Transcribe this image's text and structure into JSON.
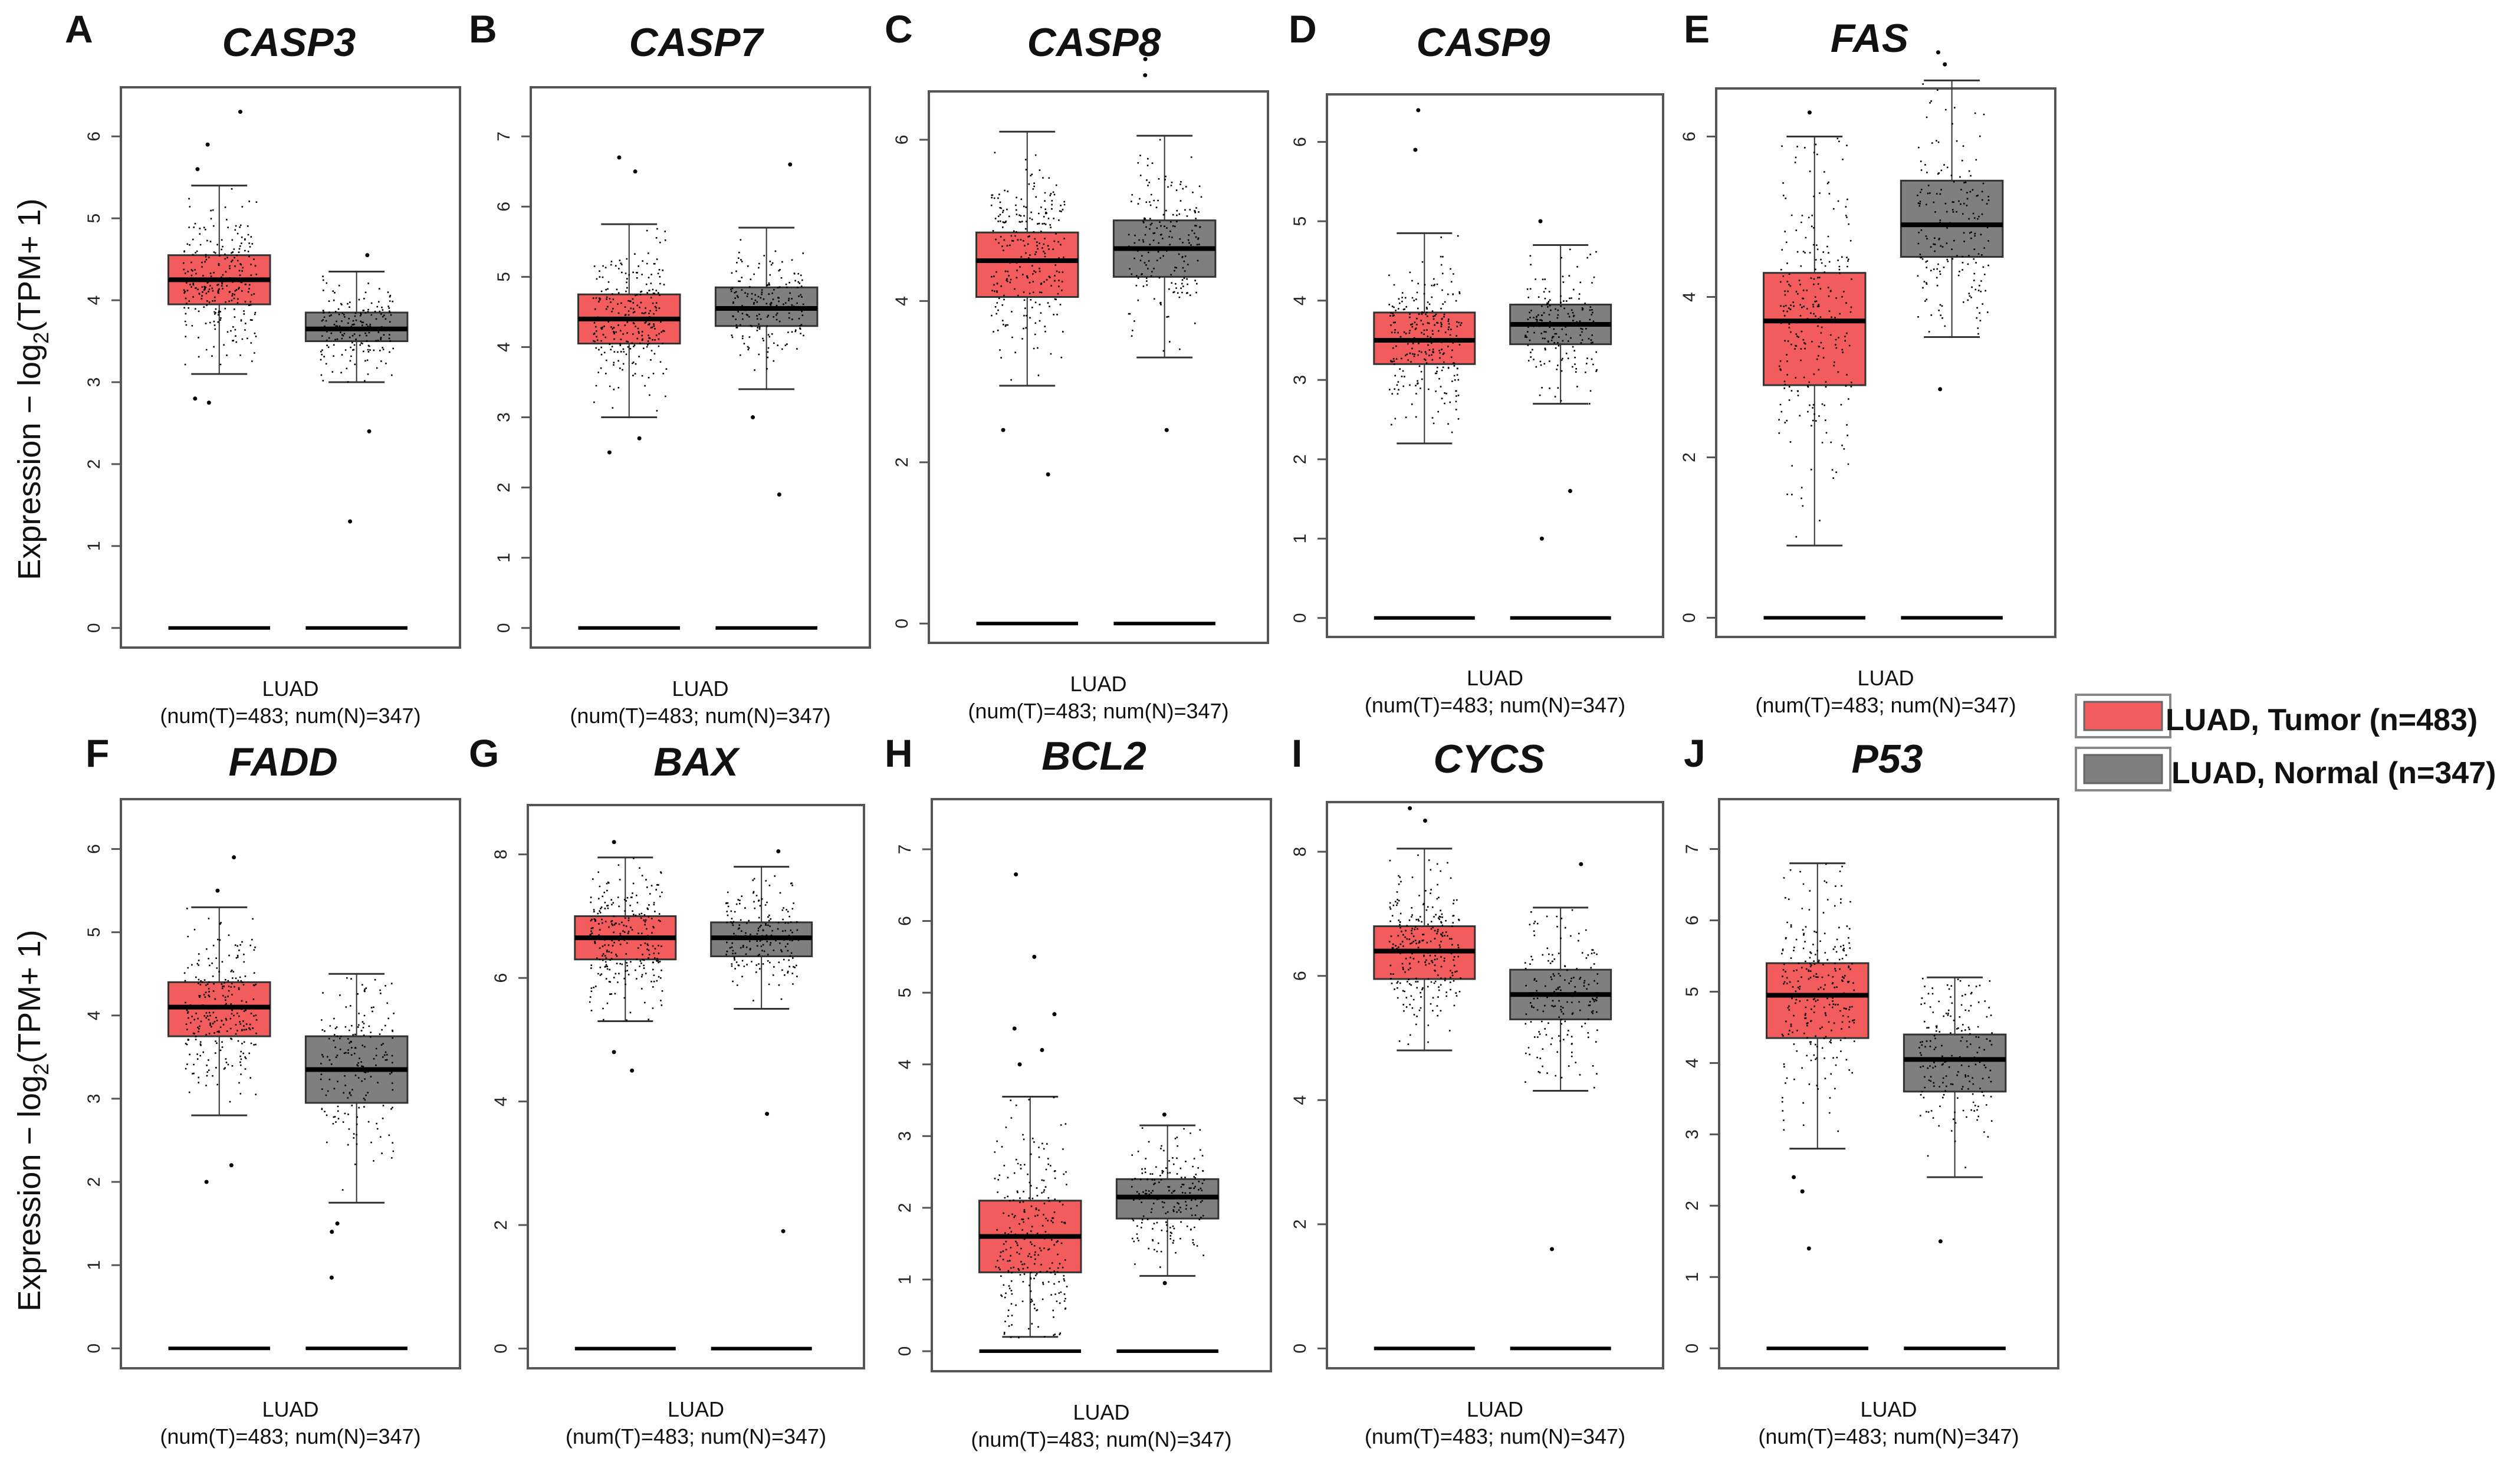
{
  "y_axis_label_prefix": "Expression − log",
  "y_axis_label_sub": "2",
  "y_axis_label_suffix": "(TPM+ 1)",
  "legend": [
    {
      "label": "LUAD, Tumor (n=483)",
      "color": "#f25c5c"
    },
    {
      "label": "LUAD, Normal (n=347)",
      "color": "#7f7f7f"
    }
  ],
  "colors": {
    "tumor": "#f25c5c",
    "normal": "#7f7f7f",
    "points": "#000000",
    "frame": "#555555"
  },
  "chart_data": [
    {
      "type": "box",
      "panel": "A",
      "title": "CASP3",
      "xlabel": "LUAD",
      "xsublabel": "(num(T)=483; num(N)=347)",
      "ylim": [
        0,
        6
      ],
      "yticks": [
        0,
        1,
        2,
        3,
        4,
        5,
        6
      ],
      "series": [
        {
          "name": "Tumor",
          "n": 483,
          "min": 3.1,
          "q1": 3.95,
          "median": 4.25,
          "q3": 4.55,
          "max": 5.4,
          "outliers": [
            6.3,
            5.9,
            5.6,
            2.8,
            2.75
          ]
        },
        {
          "name": "Normal",
          "n": 347,
          "min": 3.0,
          "q1": 3.5,
          "median": 3.65,
          "q3": 3.85,
          "max": 4.35,
          "outliers": [
            4.55,
            2.4,
            1.3
          ]
        }
      ]
    },
    {
      "type": "box",
      "panel": "B",
      "title": "CASP7",
      "xlabel": "LUAD",
      "xsublabel": "(num(T)=483; num(N)=347)",
      "ylim": [
        0,
        7
      ],
      "yticks": [
        0,
        1,
        2,
        3,
        4,
        5,
        6,
        7
      ],
      "series": [
        {
          "name": "Tumor",
          "n": 483,
          "min": 3.0,
          "q1": 4.05,
          "median": 4.4,
          "q3": 4.75,
          "max": 5.75,
          "outliers": [
            6.7,
            6.5,
            2.5,
            2.7
          ]
        },
        {
          "name": "Normal",
          "n": 347,
          "min": 3.4,
          "q1": 4.3,
          "median": 4.55,
          "q3": 4.85,
          "max": 5.7,
          "outliers": [
            6.6,
            3.0,
            1.9
          ]
        }
      ]
    },
    {
      "type": "box",
      "panel": "C",
      "title": "CASP8",
      "xlabel": "LUAD",
      "xsublabel": "(num(T)=483; num(N)=347)",
      "ylim": [
        0,
        6
      ],
      "yticks": [
        0,
        2,
        4,
        6
      ],
      "series": [
        {
          "name": "Tumor",
          "n": 483,
          "min": 2.95,
          "q1": 4.05,
          "median": 4.5,
          "q3": 4.85,
          "max": 6.1,
          "outliers": [
            2.4,
            1.85
          ]
        },
        {
          "name": "Normal",
          "n": 347,
          "min": 3.3,
          "q1": 4.3,
          "median": 4.65,
          "q3": 5.0,
          "max": 6.05,
          "outliers": [
            7.0,
            6.8,
            2.4
          ]
        }
      ]
    },
    {
      "type": "box",
      "panel": "D",
      "title": "CASP9",
      "xlabel": "LUAD",
      "xsublabel": "(num(T)=483; num(N)=347)",
      "ylim": [
        0,
        6
      ],
      "yticks": [
        0,
        1,
        2,
        3,
        4,
        5,
        6
      ],
      "series": [
        {
          "name": "Tumor",
          "n": 483,
          "min": 2.2,
          "q1": 3.2,
          "median": 3.5,
          "q3": 3.85,
          "max": 4.85,
          "outliers": [
            6.4,
            5.9
          ]
        },
        {
          "name": "Normal",
          "n": 347,
          "min": 2.7,
          "q1": 3.45,
          "median": 3.7,
          "q3": 3.95,
          "max": 4.7,
          "outliers": [
            5.0,
            1.6,
            1.0
          ]
        }
      ]
    },
    {
      "type": "box",
      "panel": "E",
      "title": "FAS",
      "xlabel": "LUAD",
      "xsublabel": "(num(T)=483; num(N)=347)",
      "ylim": [
        0,
        6
      ],
      "yticks": [
        0,
        2,
        4,
        6
      ],
      "series": [
        {
          "name": "Tumor",
          "n": 483,
          "min": 0.9,
          "q1": 2.9,
          "median": 3.7,
          "q3": 4.3,
          "max": 6.0,
          "outliers": [
            6.3
          ]
        },
        {
          "name": "Normal",
          "n": 347,
          "min": 3.5,
          "q1": 4.5,
          "median": 4.9,
          "q3": 5.45,
          "max": 6.7,
          "outliers": [
            7.05,
            6.9,
            2.85
          ]
        }
      ]
    },
    {
      "type": "box",
      "panel": "F",
      "title": "FADD",
      "xlabel": "LUAD",
      "xsublabel": "(num(T)=483; num(N)=347)",
      "ylim": [
        0,
        6
      ],
      "yticks": [
        0,
        1,
        2,
        3,
        4,
        5,
        6
      ],
      "series": [
        {
          "name": "Tumor",
          "n": 483,
          "min": 2.8,
          "q1": 3.75,
          "median": 4.1,
          "q3": 4.4,
          "max": 5.3,
          "outliers": [
            5.9,
            5.5,
            2.2,
            2.0
          ]
        },
        {
          "name": "Normal",
          "n": 347,
          "min": 1.75,
          "q1": 2.95,
          "median": 3.35,
          "q3": 3.75,
          "max": 4.5,
          "outliers": [
            1.5,
            1.4,
            0.85
          ]
        }
      ]
    },
    {
      "type": "box",
      "panel": "G",
      "title": "BAX",
      "xlabel": "LUAD",
      "xsublabel": "(num(T)=483; num(N)=347)",
      "ylim": [
        0,
        8
      ],
      "yticks": [
        0,
        2,
        4,
        6,
        8
      ],
      "series": [
        {
          "name": "Tumor",
          "n": 483,
          "min": 5.3,
          "q1": 6.3,
          "median": 6.65,
          "q3": 7.0,
          "max": 7.95,
          "outliers": [
            8.2,
            4.8,
            4.5
          ]
        },
        {
          "name": "Normal",
          "n": 347,
          "min": 5.5,
          "q1": 6.35,
          "median": 6.65,
          "q3": 6.9,
          "max": 7.8,
          "outliers": [
            8.05,
            3.8,
            1.9
          ]
        }
      ]
    },
    {
      "type": "box",
      "panel": "H",
      "title": "BCL2",
      "xlabel": "LUAD",
      "xsublabel": "(num(T)=483; num(N)=347)",
      "ylim": [
        0,
        7
      ],
      "yticks": [
        0,
        1,
        2,
        3,
        4,
        5,
        6,
        7
      ],
      "series": [
        {
          "name": "Tumor",
          "n": 483,
          "min": 0.2,
          "q1": 1.1,
          "median": 1.6,
          "q3": 2.1,
          "max": 3.55,
          "outliers": [
            6.65,
            5.5,
            4.7,
            4.5,
            4.2,
            4.0
          ]
        },
        {
          "name": "Normal",
          "n": 347,
          "min": 1.05,
          "q1": 1.85,
          "median": 2.15,
          "q3": 2.4,
          "max": 3.15,
          "outliers": [
            3.3,
            0.95
          ]
        }
      ]
    },
    {
      "type": "box",
      "panel": "I",
      "title": "CYCS",
      "xlabel": "LUAD",
      "xsublabel": "(num(T)=483; num(N)=347)",
      "ylim": [
        0,
        8
      ],
      "yticks": [
        0,
        2,
        4,
        6,
        8
      ],
      "series": [
        {
          "name": "Tumor",
          "n": 483,
          "min": 4.8,
          "q1": 5.95,
          "median": 6.4,
          "q3": 6.8,
          "max": 8.05,
          "outliers": [
            8.7,
            8.5
          ]
        },
        {
          "name": "Normal",
          "n": 347,
          "min": 4.15,
          "q1": 5.3,
          "median": 5.7,
          "q3": 6.1,
          "max": 7.1,
          "outliers": [
            7.8,
            1.6
          ]
        }
      ]
    },
    {
      "type": "box",
      "panel": "J",
      "title": "P53",
      "xlabel": "LUAD",
      "xsublabel": "(num(T)=483; num(N)=347)",
      "ylim": [
        0,
        7
      ],
      "yticks": [
        0,
        1,
        2,
        3,
        4,
        5,
        6,
        7
      ],
      "series": [
        {
          "name": "Tumor",
          "n": 483,
          "min": 2.8,
          "q1": 4.35,
          "median": 4.95,
          "q3": 5.4,
          "max": 6.8,
          "outliers": [
            2.4,
            2.2,
            1.4
          ]
        },
        {
          "name": "Normal",
          "n": 347,
          "min": 2.4,
          "q1": 3.6,
          "median": 4.05,
          "q3": 4.4,
          "max": 5.2,
          "outliers": [
            1.5
          ]
        }
      ]
    }
  ]
}
